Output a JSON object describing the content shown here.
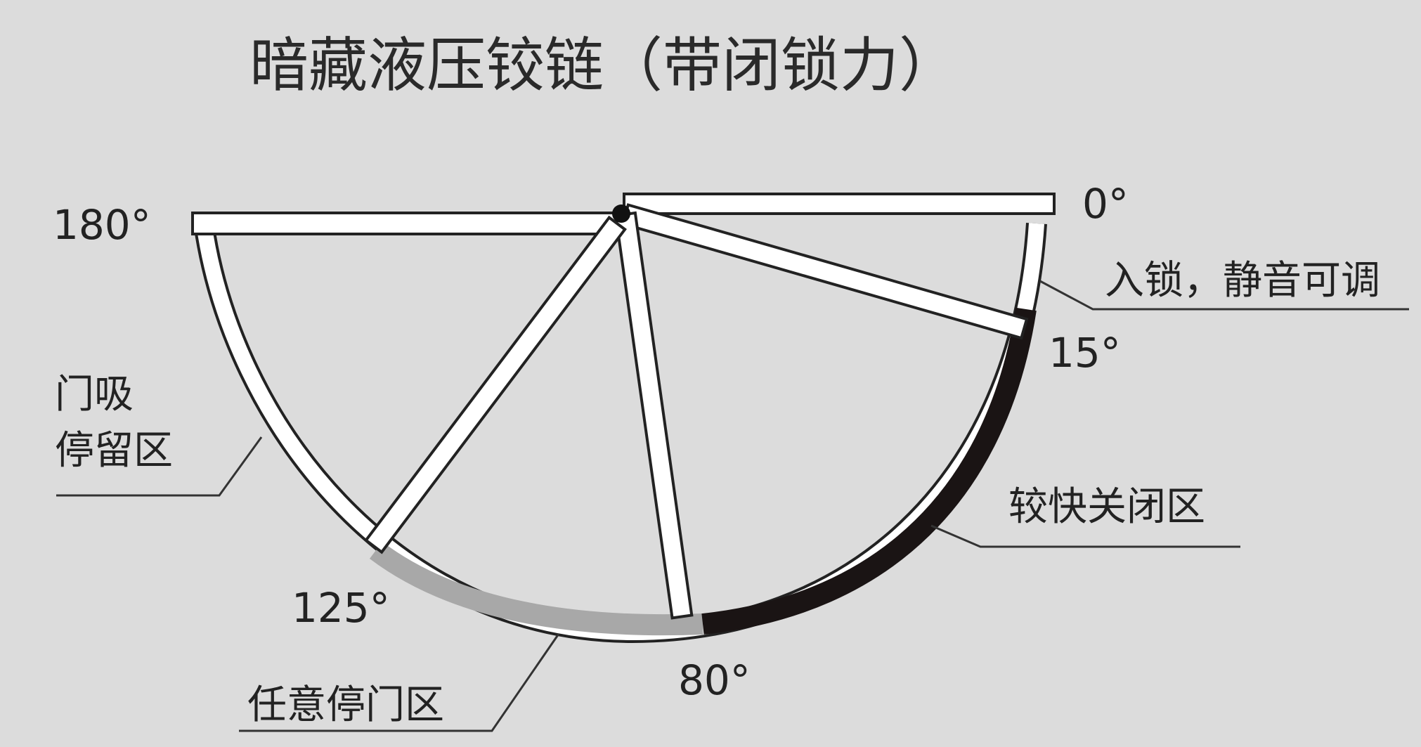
{
  "title": "暗藏液压铰链（带闭锁力）",
  "angles": {
    "a0": "0°",
    "a15": "15°",
    "a80": "80°",
    "a125": "125°",
    "a180": "180°"
  },
  "zones": {
    "latch": "入锁，静音可调",
    "fast_close": "较快关闭区",
    "free_stop": "任意停门区",
    "stop_line1": "门吸",
    "stop_line2": "停留区"
  },
  "colors": {
    "background": "#dcdcdc",
    "panel": "#ffffff",
    "outline": "#222222",
    "fast_close_zone": "#1a1414",
    "free_stop_zone": "#a8a8a8"
  }
}
